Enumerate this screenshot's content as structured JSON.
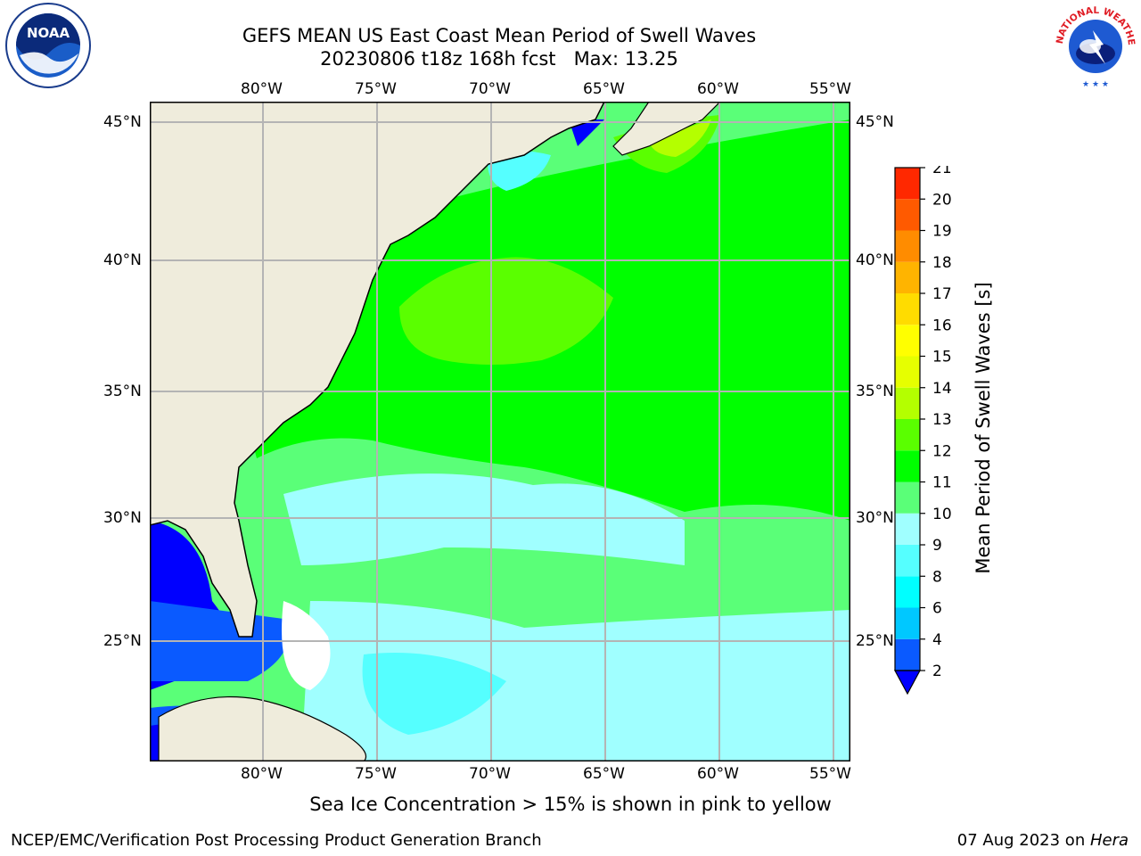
{
  "title": {
    "line1": "GEFS MEAN US East Coast Mean Period of Swell Waves",
    "line2": "20230806 t18z 168h fcst   Max: 13.25"
  },
  "map": {
    "lon_labels": [
      "80°W",
      "75°W",
      "70°W",
      "65°W",
      "60°W",
      "55°W"
    ],
    "lat_labels": [
      "45°N",
      "40°N",
      "35°N",
      "30°N",
      "25°N"
    ],
    "land_color": "#efecdc",
    "grid_color": "#b4b4b4"
  },
  "colorbar": {
    "title": "Mean Period of Swell Waves [s]",
    "ticks": [
      "2",
      "4",
      "6",
      "8",
      "9",
      "10",
      "11",
      "12",
      "13",
      "14",
      "15",
      "16",
      "17",
      "18",
      "19",
      "20",
      "21"
    ],
    "colors": [
      "#0a5aff",
      "#00c8ff",
      "#00ffff",
      "#55ffff",
      "#a0ffff",
      "#5aff78",
      "#00ff00",
      "#5aff00",
      "#b4ff00",
      "#e6ff00",
      "#ffff00",
      "#ffdc00",
      "#ffb400",
      "#ff8c00",
      "#ff5a00",
      "#ff2800"
    ],
    "under_color": "#0000ff"
  },
  "footer_note": "Sea Ice Concentration > 15% is shown in pink to yellow",
  "credit_left": "NCEP/EMC/Verification Post Processing Product Generation Branch",
  "credit_right_prefix": "07 Aug 2023 on ",
  "credit_right_host": "Hera",
  "logos": {
    "noaa_text": "NOAA",
    "nws_text": "NATIONAL WEATHER SERVICE"
  }
}
